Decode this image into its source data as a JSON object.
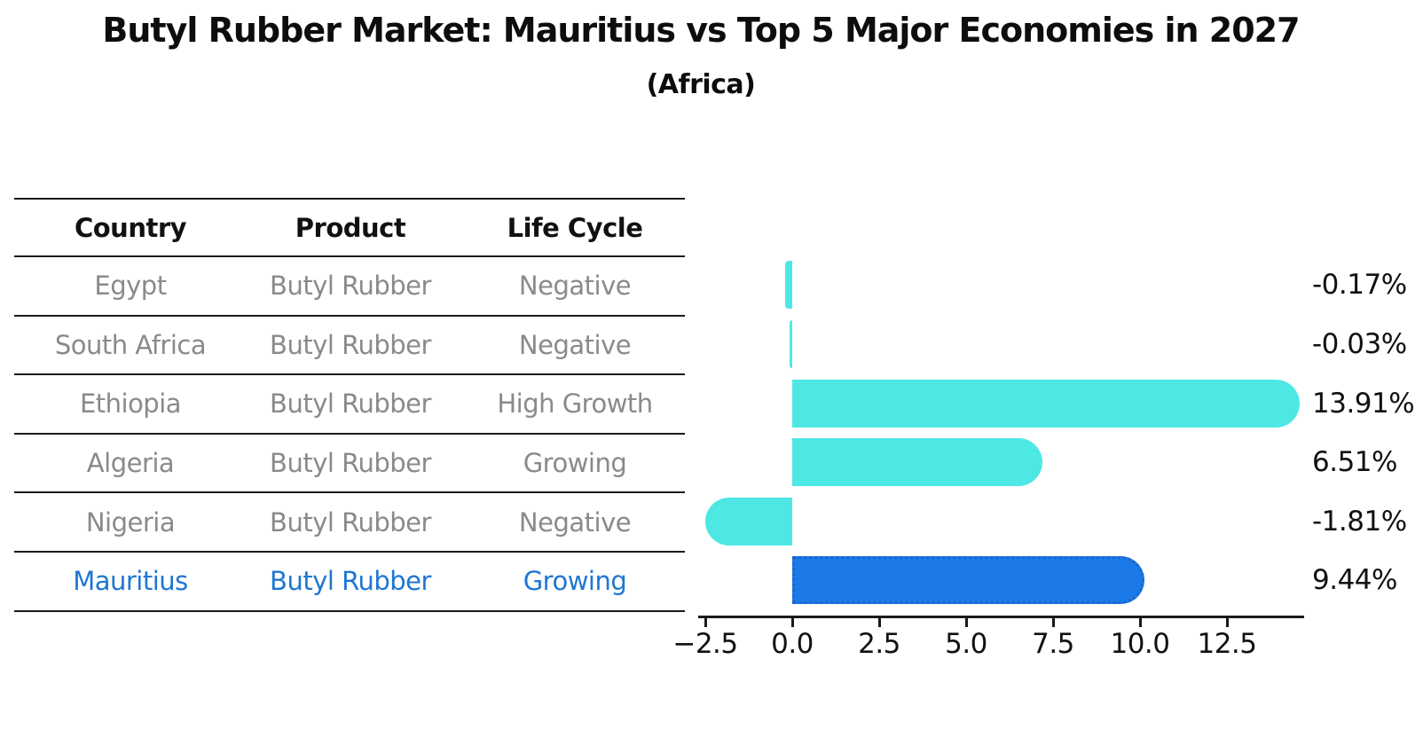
{
  "header": {
    "title": "Butyl Rubber Market: Mauritius vs Top 5 Major Economies in 2027",
    "subtitle": "(Africa)"
  },
  "table": {
    "headers": [
      "Country",
      "Product",
      "Life Cycle"
    ],
    "rows": [
      {
        "country": "Egypt",
        "product": "Butyl Rubber",
        "life_cycle": "Negative",
        "highlight": false
      },
      {
        "country": "South Africa",
        "product": "Butyl Rubber",
        "life_cycle": "Negative",
        "highlight": false
      },
      {
        "country": "Ethiopia",
        "product": "Butyl Rubber",
        "life_cycle": "High Growth",
        "highlight": false
      },
      {
        "country": "Algeria",
        "product": "Butyl Rubber",
        "life_cycle": "Growing",
        "highlight": false
      },
      {
        "country": "Nigeria",
        "product": "Butyl Rubber",
        "life_cycle": "Negative",
        "highlight": false
      },
      {
        "country": "Mauritius",
        "product": "Butyl Rubber",
        "life_cycle": "Growing",
        "highlight": true
      }
    ]
  },
  "chart_data": {
    "type": "bar",
    "orientation": "horizontal",
    "title": "Butyl Rubber Market: Mauritius vs Top 5 Major Economies in 2027 (Africa)",
    "categories": [
      "Egypt",
      "South Africa",
      "Ethiopia",
      "Algeria",
      "Nigeria",
      "Mauritius"
    ],
    "values": [
      -0.17,
      -0.03,
      13.91,
      6.51,
      -1.81,
      9.44
    ],
    "value_labels": [
      "-0.17%",
      "-0.03%",
      "13.91%",
      "6.51%",
      "-1.81%",
      "9.44%"
    ],
    "highlight_category": "Mauritius",
    "xlabel": "",
    "ylabel": "",
    "xlim": [
      -3.0,
      14.7
    ],
    "grid": false,
    "legend": false,
    "x_ticks": [
      {
        "value": -2.5,
        "label": "−2.5"
      },
      {
        "value": 0.0,
        "label": "0.0"
      },
      {
        "value": 2.5,
        "label": "2.5"
      },
      {
        "value": 5.0,
        "label": "5.0"
      },
      {
        "value": 7.5,
        "label": "7.5"
      },
      {
        "value": 10.0,
        "label": "10.0"
      },
      {
        "value": 12.5,
        "label": "12.5"
      }
    ],
    "colors": {
      "bar": "#4DE8E4",
      "highlight_bar": "#1B7AE8",
      "highlight_border": "#1E66CC",
      "highlight_text": "#1F76D2",
      "row_text": "#8A8A8A",
      "axis": "#1A1A1A"
    }
  }
}
